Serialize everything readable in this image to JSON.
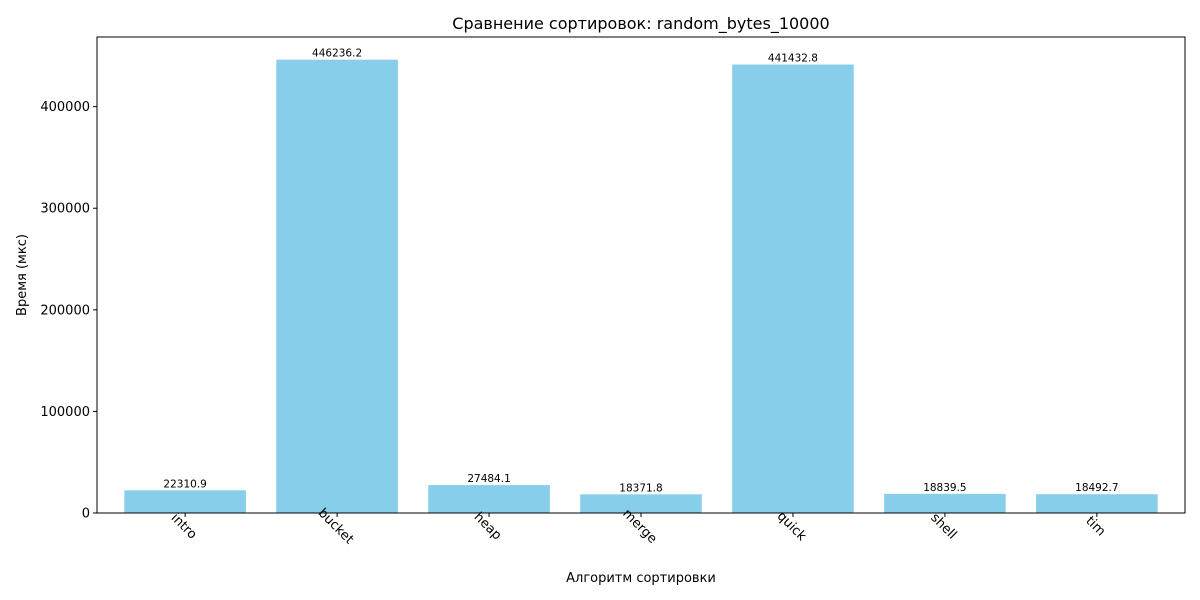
{
  "chart_data": {
    "type": "bar",
    "title": "Сравнение сортировок: random_bytes_10000",
    "xlabel": "Алгоритм сортировки",
    "ylabel": "Время (мкс)",
    "categories": [
      "intro",
      "bucket",
      "heap",
      "merge",
      "quick",
      "shell",
      "tim"
    ],
    "values": [
      22310.9,
      446236.2,
      27484.1,
      18371.8,
      441432.8,
      18839.5,
      18492.7
    ],
    "data_labels": [
      "22310.9",
      "446236.2",
      "27484.1",
      "18371.8",
      "441432.8",
      "18839.5",
      "18492.7"
    ],
    "ylim": [
      0,
      468548
    ],
    "yticks": [
      0,
      100000,
      200000,
      300000,
      400000
    ],
    "ytick_labels": [
      "0",
      "100000",
      "200000",
      "300000",
      "400000"
    ],
    "bar_color": "#87ceeb",
    "grid": false,
    "legend": "none"
  }
}
